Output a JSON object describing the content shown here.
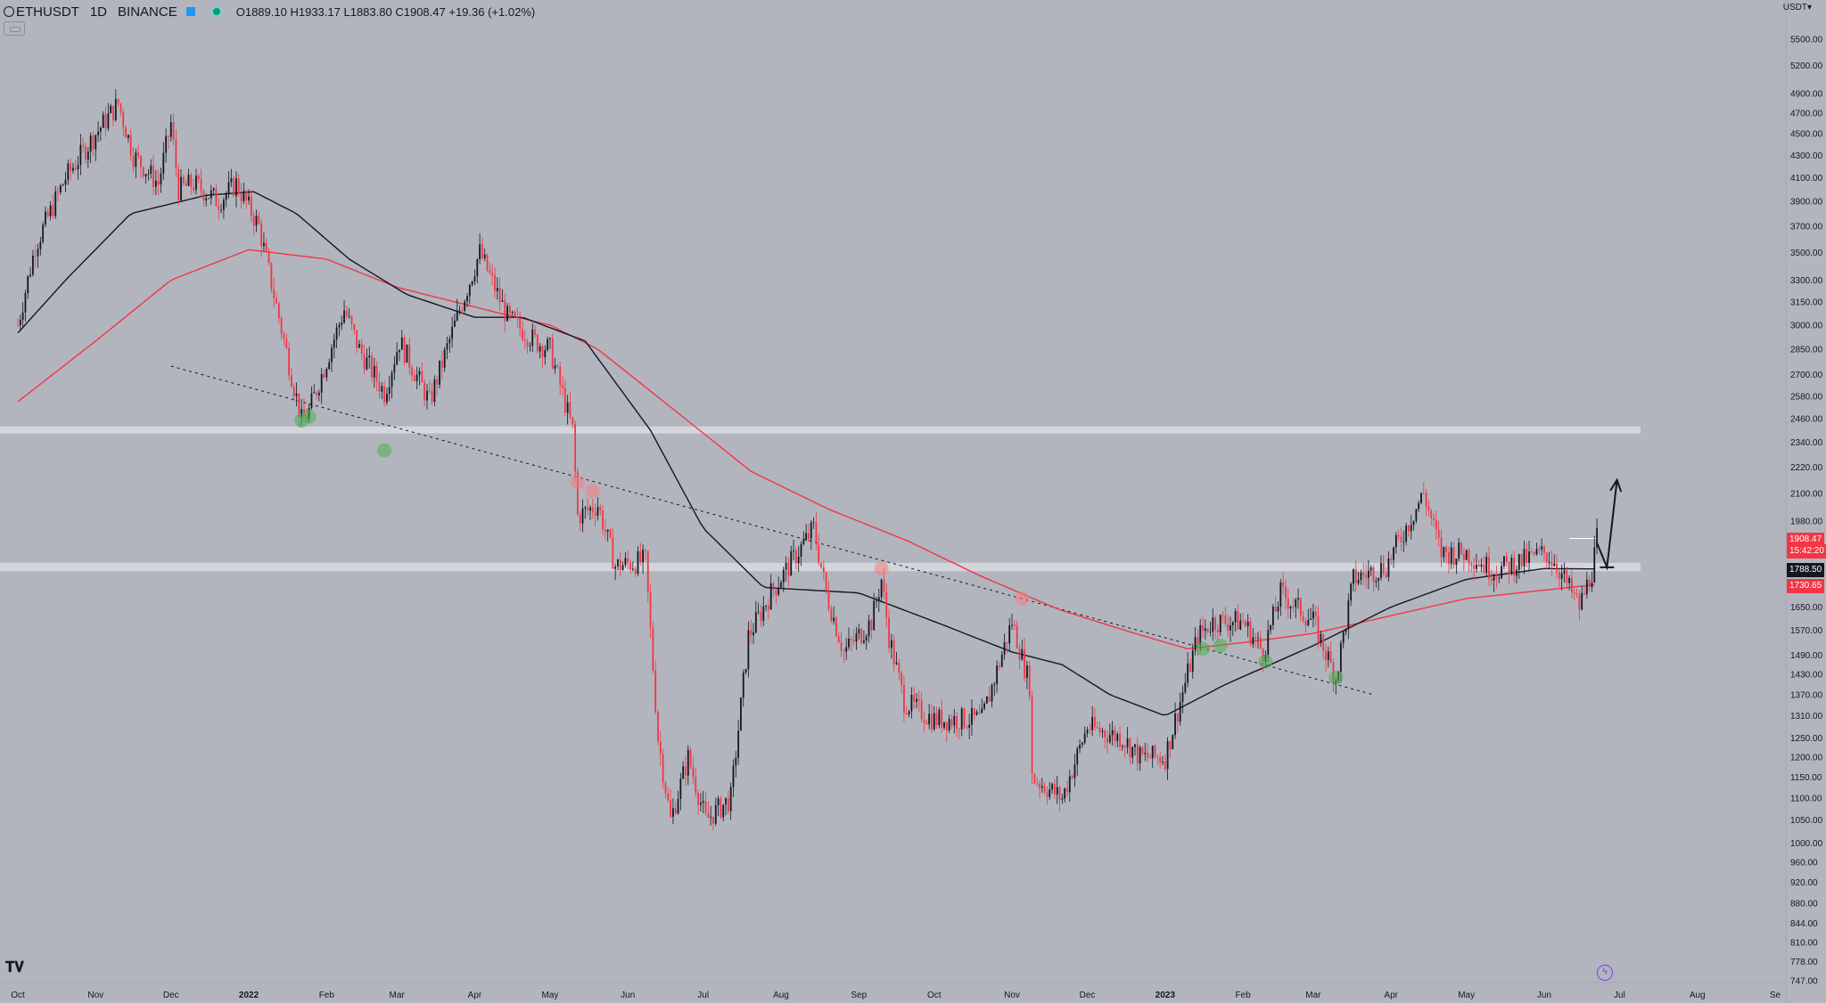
{
  "header": {
    "symbol": "ETHUSDT",
    "timeframe": "1D",
    "exchange": "BINANCE",
    "ohlc": {
      "o_label": "O",
      "o": "1889.10",
      "h_label": "H",
      "h": "1933.17",
      "l_label": "L",
      "l": "1883.80",
      "c_label": "C",
      "c": "1908.47",
      "change": "+19.36 (+1.02%)"
    }
  },
  "currency_label": "USDT",
  "currency_icon": "chevron-down-icon",
  "price_labels": {
    "last": "1908.47",
    "countdown": "15:42:20",
    "ma_black": "1788.50",
    "ma_red": "1730.65"
  },
  "colors": {
    "background": "#b2b5be",
    "candle_up": "#131722",
    "candle_down": "#f23645",
    "ma_fast": "#131722",
    "ma_slow": "#f23645",
    "zone": "#d8dae0",
    "marker_green": "#4caf50",
    "marker_red": "#f77c80"
  },
  "chart_data": {
    "type": "candlestick",
    "y_scale": "log",
    "ylim": [
      747,
      5800
    ],
    "xlim": [
      "2021-10-01",
      "2023-09-01"
    ],
    "y_ticks": [
      "5500.00",
      "5200.00",
      "4900.00",
      "4700.00",
      "4500.00",
      "4300.00",
      "4100.00",
      "3900.00",
      "3700.00",
      "3500.00",
      "3300.00",
      "3150.00",
      "3000.00",
      "2850.00",
      "2700.00",
      "2580.00",
      "2460.00",
      "2340.00",
      "2220.00",
      "2100.00",
      "1980.00",
      "1650.00",
      "1570.00",
      "1490.00",
      "1430.00",
      "1370.00",
      "1310.00",
      "1250.00",
      "1200.00",
      "1150.00",
      "1100.00",
      "1050.00",
      "1000.00",
      "960.00",
      "920.00",
      "880.00",
      "844.00",
      "810.00",
      "778.00",
      "747.00"
    ],
    "x_ticks": [
      {
        "label": "Oct",
        "date": "2021-10-01"
      },
      {
        "label": "Nov",
        "date": "2021-11-01"
      },
      {
        "label": "Dec",
        "date": "2021-12-01"
      },
      {
        "label": "2022",
        "date": "2022-01-01"
      },
      {
        "label": "Feb",
        "date": "2022-02-01"
      },
      {
        "label": "Mar",
        "date": "2022-03-01"
      },
      {
        "label": "Apr",
        "date": "2022-04-01"
      },
      {
        "label": "May",
        "date": "2022-05-01"
      },
      {
        "label": "Jun",
        "date": "2022-06-01"
      },
      {
        "label": "Jul",
        "date": "2022-07-01"
      },
      {
        "label": "Aug",
        "date": "2022-08-01"
      },
      {
        "label": "Sep",
        "date": "2022-09-01"
      },
      {
        "label": "Oct",
        "date": "2022-10-01"
      },
      {
        "label": "Nov",
        "date": "2022-11-01"
      },
      {
        "label": "Dec",
        "date": "2022-12-01"
      },
      {
        "label": "2023",
        "date": "2023-01-01"
      },
      {
        "label": "Feb",
        "date": "2023-02-01"
      },
      {
        "label": "Mar",
        "date": "2023-03-01"
      },
      {
        "label": "Apr",
        "date": "2023-04-01"
      },
      {
        "label": "May",
        "date": "2023-05-01"
      },
      {
        "label": "Jun",
        "date": "2023-06-01"
      },
      {
        "label": "Jul",
        "date": "2023-07-01"
      },
      {
        "label": "Aug",
        "date": "2023-08-01"
      },
      {
        "label": "Se",
        "date": "2023-09-01"
      }
    ],
    "price_path": [
      [
        "2021-10-01",
        3000
      ],
      [
        "2021-10-08",
        3550
      ],
      [
        "2021-10-20",
        4100
      ],
      [
        "2021-11-01",
        4500
      ],
      [
        "2021-11-10",
        4800
      ],
      [
        "2021-11-16",
        4300
      ],
      [
        "2021-11-26",
        4050
      ],
      [
        "2021-12-01",
        4600
      ],
      [
        "2021-12-04",
        4000
      ],
      [
        "2021-12-10",
        4050
      ],
      [
        "2021-12-20",
        3900
      ],
      [
        "2021-12-27",
        4050
      ],
      [
        "2022-01-05",
        3700
      ],
      [
        "2022-01-11",
        3200
      ],
      [
        "2022-01-22",
        2450
      ],
      [
        "2022-01-25",
        2500
      ],
      [
        "2022-02-08",
        3100
      ],
      [
        "2022-02-14",
        2850
      ],
      [
        "2022-02-24",
        2600
      ],
      [
        "2022-03-02",
        2900
      ],
      [
        "2022-03-14",
        2550
      ],
      [
        "2022-03-26",
        3100
      ],
      [
        "2022-04-03",
        3500
      ],
      [
        "2022-04-14",
        3050
      ],
      [
        "2022-04-25",
        2900
      ],
      [
        "2022-05-01",
        2850
      ],
      [
        "2022-05-10",
        2400
      ],
      [
        "2022-05-12",
        2000
      ],
      [
        "2022-05-20",
        2050
      ],
      [
        "2022-05-27",
        1800
      ],
      [
        "2022-06-08",
        1820
      ],
      [
        "2022-06-13",
        1250
      ],
      [
        "2022-06-18",
        1050
      ],
      [
        "2022-06-25",
        1200
      ],
      [
        "2022-07-02",
        1050
      ],
      [
        "2022-07-12",
        1100
      ],
      [
        "2022-07-19",
        1550
      ],
      [
        "2022-07-28",
        1700
      ],
      [
        "2022-08-14",
        1950
      ],
      [
        "2022-08-19",
        1700
      ],
      [
        "2022-08-26",
        1500
      ],
      [
        "2022-09-06",
        1600
      ],
      [
        "2022-09-10",
        1750
      ],
      [
        "2022-09-13",
        1550
      ],
      [
        "2022-09-19",
        1350
      ],
      [
        "2022-10-01",
        1300
      ],
      [
        "2022-10-20",
        1300
      ],
      [
        "2022-11-01",
        1600
      ],
      [
        "2022-11-08",
        1400
      ],
      [
        "2022-11-09",
        1150
      ],
      [
        "2022-11-21",
        1100
      ],
      [
        "2022-12-01",
        1280
      ],
      [
        "2022-12-15",
        1250
      ],
      [
        "2022-12-22",
        1200
      ],
      [
        "2023-01-01",
        1200
      ],
      [
        "2023-01-14",
        1550
      ],
      [
        "2023-01-20",
        1600
      ],
      [
        "2023-02-01",
        1600
      ],
      [
        "2023-02-09",
        1500
      ],
      [
        "2023-02-16",
        1700
      ],
      [
        "2023-03-01",
        1600
      ],
      [
        "2023-03-10",
        1420
      ],
      [
        "2023-03-17",
        1750
      ],
      [
        "2023-03-30",
        1800
      ],
      [
        "2023-04-14",
        2100
      ],
      [
        "2023-04-21",
        1850
      ],
      [
        "2023-05-01",
        1850
      ],
      [
        "2023-05-12",
        1780
      ],
      [
        "2023-06-01",
        1850
      ],
      [
        "2023-06-05",
        1820
      ],
      [
        "2023-06-15",
        1650
      ],
      [
        "2023-06-20",
        1780
      ],
      [
        "2023-06-22",
        1908
      ]
    ],
    "ma_fast_path": [
      [
        "2021-10-01",
        2950
      ],
      [
        "2021-10-20",
        3300
      ],
      [
        "2021-11-15",
        3800
      ],
      [
        "2021-12-15",
        3950
      ],
      [
        "2022-01-03",
        3980
      ],
      [
        "2022-01-20",
        3800
      ],
      [
        "2022-02-10",
        3450
      ],
      [
        "2022-03-05",
        3200
      ],
      [
        "2022-04-01",
        3050
      ],
      [
        "2022-04-20",
        3050
      ],
      [
        "2022-05-15",
        2900
      ],
      [
        "2022-06-10",
        2400
      ],
      [
        "2022-07-01",
        1950
      ],
      [
        "2022-07-25",
        1720
      ],
      [
        "2022-09-01",
        1700
      ],
      [
        "2022-10-01",
        1600
      ],
      [
        "2022-11-01",
        1500
      ],
      [
        "2022-11-21",
        1460
      ],
      [
        "2022-12-10",
        1370
      ],
      [
        "2023-01-01",
        1310
      ],
      [
        "2023-01-25",
        1400
      ],
      [
        "2023-03-01",
        1520
      ],
      [
        "2023-04-01",
        1650
      ],
      [
        "2023-05-01",
        1750
      ],
      [
        "2023-06-01",
        1790
      ],
      [
        "2023-06-22",
        1788.5
      ]
    ],
    "ma_slow_path": [
      [
        "2021-10-01",
        2550
      ],
      [
        "2021-11-01",
        2900
      ],
      [
        "2021-12-01",
        3300
      ],
      [
        "2022-01-01",
        3520
      ],
      [
        "2022-02-01",
        3450
      ],
      [
        "2022-03-01",
        3250
      ],
      [
        "2022-04-10",
        3080
      ],
      [
        "2022-05-01",
        3000
      ],
      [
        "2022-05-20",
        2850
      ],
      [
        "2022-06-20",
        2500
      ],
      [
        "2022-07-20",
        2200
      ],
      [
        "2022-08-20",
        2030
      ],
      [
        "2022-09-20",
        1900
      ],
      [
        "2022-10-20",
        1760
      ],
      [
        "2022-11-20",
        1640
      ],
      [
        "2022-12-20",
        1560
      ],
      [
        "2023-01-10",
        1510
      ],
      [
        "2023-02-01",
        1530
      ],
      [
        "2023-03-01",
        1560
      ],
      [
        "2023-04-01",
        1620
      ],
      [
        "2023-05-01",
        1680
      ],
      [
        "2023-06-01",
        1710
      ],
      [
        "2023-06-22",
        1730.65
      ]
    ],
    "zones": [
      {
        "low": 2385,
        "high": 2420
      },
      {
        "low": 1780,
        "high": 1812
      }
    ],
    "trendline": {
      "from": [
        "2021-12-01",
        2750
      ],
      "to": [
        "2023-03-25",
        1370
      ]
    },
    "last_price_line": {
      "from": "2023-06-11",
      "to": "2023-06-22",
      "price": 1908
    },
    "projection_arrow": [
      [
        "2023-06-22",
        1890
      ],
      [
        "2023-06-26",
        1795
      ],
      [
        "2023-06-30",
        2160
      ]
    ],
    "markers": [
      {
        "date": "2022-01-22",
        "price": 2450,
        "type": "support"
      },
      {
        "date": "2022-01-25",
        "price": 2470,
        "type": "support"
      },
      {
        "date": "2022-02-24",
        "price": 2300,
        "type": "support"
      },
      {
        "date": "2022-05-12",
        "price": 2150,
        "type": "resistance"
      },
      {
        "date": "2022-05-18",
        "price": 2110,
        "type": "resistance"
      },
      {
        "date": "2022-09-10",
        "price": 1790,
        "type": "resistance"
      },
      {
        "date": "2022-11-05",
        "price": 1680,
        "type": "resistance"
      },
      {
        "date": "2023-01-16",
        "price": 1510,
        "type": "support"
      },
      {
        "date": "2023-01-23",
        "price": 1520,
        "type": "support"
      },
      {
        "date": "2023-02-10",
        "price": 1470,
        "type": "support"
      },
      {
        "date": "2023-03-10",
        "price": 1420,
        "type": "support"
      }
    ]
  }
}
